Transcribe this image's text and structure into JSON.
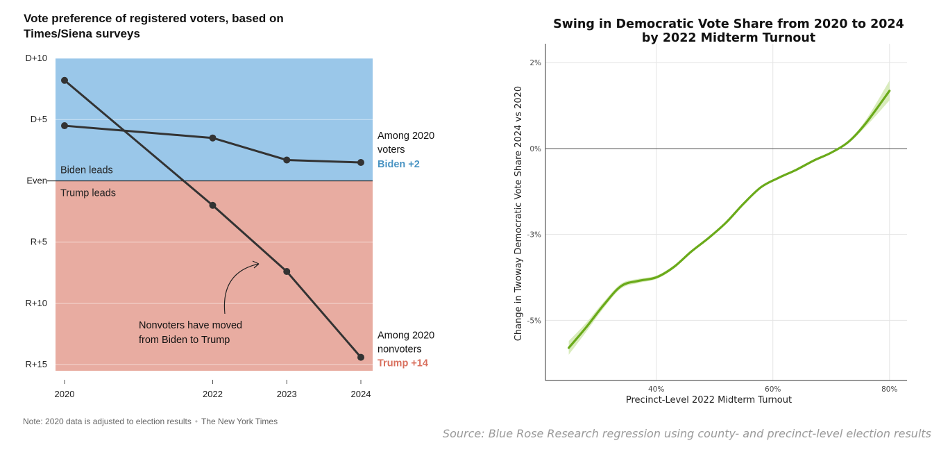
{
  "colors": {
    "biden_bg": "#9ac7e9",
    "trump_bg": "#e8aca1",
    "line": "#333333",
    "biden_accent": "#4a94c3",
    "trump_accent": "#d9705e",
    "swing_line": "#6aaa1a",
    "swing_band": "#cfe7ad"
  },
  "left": {
    "title": "Vote preference of registered voters, based on Times/Siena surveys",
    "note": "Note: 2020 data is adjusted to election results",
    "credit": "The New York Times",
    "region_labels": {
      "biden": "Biden leads",
      "trump": "Trump leads"
    },
    "annotation": [
      "Nonvoters have moved",
      "from Biden to Trump"
    ],
    "voters_label": [
      "Among 2020",
      "voters"
    ],
    "voters_value": "Biden +2",
    "nonvoters_label": [
      "Among 2020",
      "nonvoters"
    ],
    "nonvoters_value": "Trump +14"
  },
  "right": {
    "title_line1": "Swing in Democratic Vote Share from 2020 to 2024",
    "title_line2": "by 2022 Midterm Turnout",
    "source": "Source: Blue Rose Research regression using county- and precinct-level election results"
  },
  "chart_data": [
    {
      "type": "line",
      "title": "Vote preference of registered voters, based on Times/Siena surveys",
      "x": [
        2020,
        2022,
        2023,
        2024
      ],
      "x_tick_labels": [
        "2020",
        "2022",
        "2023",
        "2024"
      ],
      "y_tick_labels": [
        "D+10",
        "D+5",
        "Even",
        "R+5",
        "R+10",
        "R+15"
      ],
      "y_ticks": [
        10,
        5,
        0,
        -5,
        -10,
        -15
      ],
      "ylim": [
        -15.5,
        10
      ],
      "series": [
        {
          "name": "Among 2020 voters",
          "values": [
            4.5,
            3.5,
            1.7,
            1.5
          ]
        },
        {
          "name": "Among 2020 nonvoters",
          "values": [
            8.2,
            -2,
            -7.4,
            -14.4
          ]
        }
      ],
      "shading": {
        "above_zero": "Biden leads",
        "below_zero": "Trump leads"
      }
    },
    {
      "type": "line",
      "title": "Swing in Democratic Vote Share from 2020 to 2024 by 2022 Midterm Turnout",
      "xlabel": "Precinct-Level 2022 Midterm Turnout",
      "ylabel": "Change in Twoway Democratic Vote Share 2024 vs 2020",
      "x_ticks": [
        40,
        60,
        80
      ],
      "x_tick_labels": [
        "40%",
        "60%",
        "80%"
      ],
      "y_ticks": [
        2.5,
        0,
        -2.5,
        -5
      ],
      "y_tick_labels": [
        "2%",
        "0%",
        "-3%",
        "-5%"
      ],
      "xlim": [
        21,
        83
      ],
      "ylim": [
        -6.75,
        3.05
      ],
      "x": [
        25,
        28,
        31,
        34,
        37,
        40,
        43,
        46,
        49,
        52,
        55,
        58,
        61,
        64,
        67,
        70,
        73,
        76,
        80
      ],
      "values": [
        -5.8,
        -5.2,
        -4.55,
        -4.0,
        -3.85,
        -3.75,
        -3.45,
        -3.0,
        -2.6,
        -2.15,
        -1.6,
        -1.12,
        -0.85,
        -0.62,
        -0.35,
        -0.12,
        0.2,
        0.75,
        1.68
      ],
      "band_lower": [
        -6.0,
        -5.33,
        -4.64,
        -4.07,
        -3.91,
        -3.8,
        -3.5,
        -3.04,
        -2.64,
        -2.19,
        -1.64,
        -1.15,
        -0.88,
        -0.65,
        -0.38,
        -0.15,
        0.16,
        0.65,
        1.4
      ],
      "band_upper": [
        -5.6,
        -5.07,
        -4.46,
        -3.93,
        -3.79,
        -3.7,
        -3.4,
        -2.96,
        -2.56,
        -2.11,
        -1.56,
        -1.09,
        -0.82,
        -0.59,
        -0.32,
        -0.09,
        0.24,
        0.85,
        1.98
      ],
      "zero_line": true,
      "grid": true
    }
  ]
}
